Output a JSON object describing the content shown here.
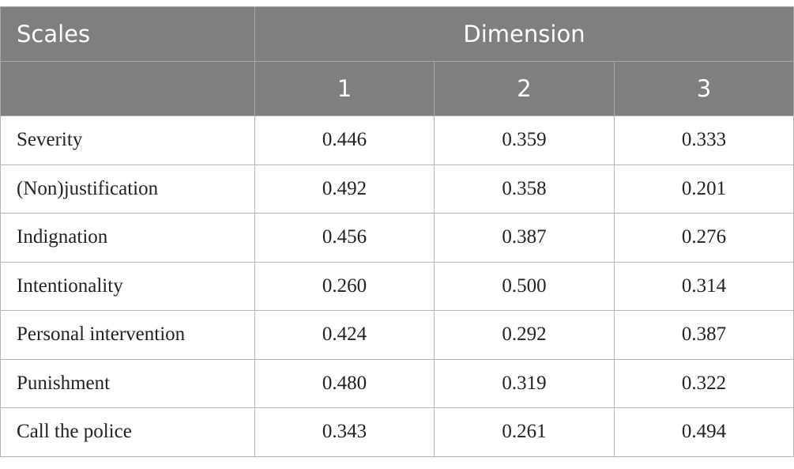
{
  "header": {
    "scales": "Scales",
    "dimension": "Dimension",
    "columns": [
      "1",
      "2",
      "3"
    ]
  },
  "table": {
    "rows": [
      [
        "Severity",
        "0.446",
        "0.359",
        "0.333"
      ],
      [
        "(Non)justification",
        "0.492",
        "0.358",
        "0.201"
      ],
      [
        "Indignation",
        "0.456",
        "0.387",
        "0.276"
      ],
      [
        "Intentionality",
        "0.260",
        "0.500",
        "0.314"
      ],
      [
        "Personal intervention",
        "0.424",
        "0.292",
        "0.387"
      ],
      [
        "Punishment",
        "0.480",
        "0.319",
        "0.322"
      ],
      [
        "Call the police",
        "0.343",
        "0.261",
        "0.494"
      ]
    ]
  }
}
